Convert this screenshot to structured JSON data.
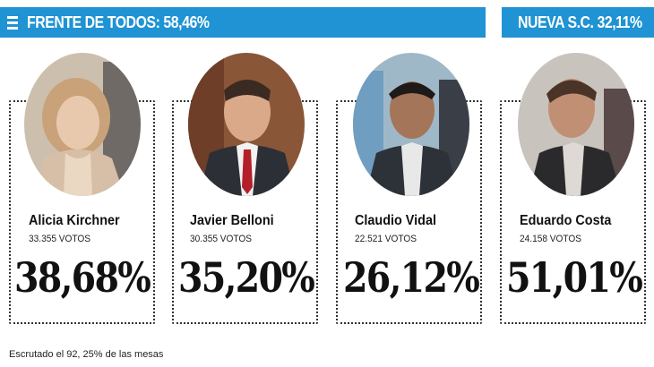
{
  "header": {
    "left_title": "FRENTE DE TODOS: 58,46%",
    "right_title": "NUEVA S.C. 32,11%"
  },
  "candidates": [
    {
      "name": "Alicia Kirchner",
      "votes": "33.355 VOTOS",
      "percent": "38,68%"
    },
    {
      "name": "Javier Belloni",
      "votes": "30.355 VOTOS",
      "percent": "35,20%"
    },
    {
      "name": "Claudio Vidal",
      "votes": "22.521 VOTOS",
      "percent": "26,12%"
    },
    {
      "name": "Eduardo Costa",
      "votes": "24.158 VOTOS",
      "percent": "51,01%"
    }
  ],
  "footer": {
    "note": "Escrutado el 92, 25% de las mesas"
  },
  "colors": {
    "banner": "#1f93d3",
    "text": "#111111",
    "border": "#333333"
  }
}
